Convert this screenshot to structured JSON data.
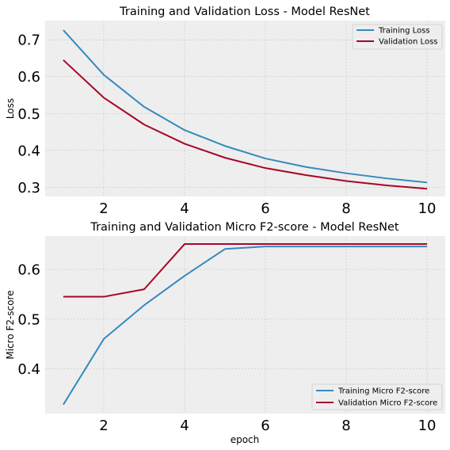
{
  "chart_data": [
    {
      "type": "line",
      "title": "Training and Validation Loss - Model ResNet",
      "xlabel": "",
      "ylabel": "Loss",
      "xlim": [
        0.55,
        10.45
      ],
      "ylim": [
        0.275,
        0.752
      ],
      "xticks": [
        2,
        4,
        6,
        8,
        10
      ],
      "yticks": [
        0.3,
        0.4,
        0.5,
        0.6,
        0.7
      ],
      "grid": true,
      "legend": "top-right",
      "x": [
        1,
        2,
        3,
        4,
        5,
        6,
        7,
        8,
        9,
        10
      ],
      "series": [
        {
          "name": "Training Loss",
          "color": "#348abd",
          "values": [
            0.726,
            0.605,
            0.518,
            0.455,
            0.412,
            0.378,
            0.355,
            0.338,
            0.324,
            0.313
          ]
        },
        {
          "name": "Validation Loss",
          "color": "#a60628",
          "values": [
            0.645,
            0.543,
            0.47,
            0.418,
            0.38,
            0.352,
            0.333,
            0.317,
            0.305,
            0.296
          ]
        }
      ]
    },
    {
      "type": "line",
      "title": "Training and Validation Micro F2-score - Model ResNet",
      "xlabel": "epoch",
      "ylabel": "Micro F2-score",
      "xlim": [
        0.55,
        10.45
      ],
      "ylim": [
        0.31,
        0.667
      ],
      "xticks": [
        2,
        4,
        6,
        8,
        10
      ],
      "yticks": [
        0.4,
        0.5,
        0.6
      ],
      "grid": true,
      "legend": "bottom-right",
      "x": [
        1,
        2,
        3,
        4,
        5,
        6,
        7,
        8,
        9,
        10
      ],
      "series": [
        {
          "name": "Training Micro F2-score",
          "color": "#348abd",
          "values": [
            0.328,
            0.46,
            0.528,
            0.587,
            0.641,
            0.646,
            0.646,
            0.646,
            0.646,
            0.646
          ]
        },
        {
          "name": "Validation Micro F2-score",
          "color": "#a60628",
          "values": [
            0.545,
            0.545,
            0.56,
            0.651,
            0.651,
            0.651,
            0.651,
            0.651,
            0.651,
            0.651
          ]
        }
      ]
    }
  ]
}
